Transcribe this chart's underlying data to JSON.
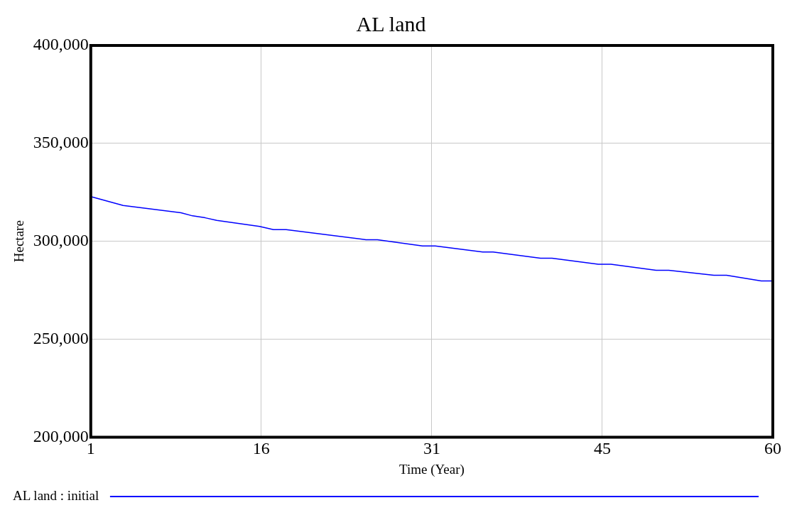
{
  "chart_data": {
    "type": "line",
    "title": "AL land",
    "xlabel": "Time (Year)",
    "ylabel": "Hectare",
    "x": [
      1,
      3.8,
      8.8,
      9.8,
      10.9,
      11.9,
      15.6,
      16.8,
      17.9,
      24.8,
      25.8,
      29.7,
      30.8,
      34.9,
      35.8,
      39.9,
      40.9,
      44.9,
      46,
      49.9,
      51,
      54.9,
      56,
      59,
      60
    ],
    "series": [
      {
        "name": "AL land : initial",
        "color": "#0000ff",
        "values": [
          322800,
          318300,
          314600,
          313000,
          312000,
          310700,
          307600,
          306000,
          306000,
          300800,
          300800,
          297600,
          297600,
          294500,
          294500,
          291400,
          291400,
          288300,
          288300,
          285200,
          285200,
          282700,
          282700,
          279800,
          279800
        ]
      }
    ],
    "xlim": [
      1,
      60
    ],
    "xticks": [
      1,
      {
        "value": 15.75,
        "label": "16"
      },
      {
        "value": 30.5,
        "label": "31"
      },
      {
        "value": 45.25,
        "label": "45"
      },
      60
    ],
    "ylim": [
      200000,
      400000
    ],
    "yticks": [
      {
        "value": 200000,
        "label": "200,000"
      },
      {
        "value": 250000,
        "label": "250,000"
      },
      {
        "value": 300000,
        "label": "300,000"
      },
      {
        "value": 350000,
        "label": "350,000"
      },
      {
        "value": 400000,
        "label": "400,000"
      }
    ],
    "grid": true,
    "legend": "bottom",
    "marker": "none",
    "line_style": "solid"
  }
}
